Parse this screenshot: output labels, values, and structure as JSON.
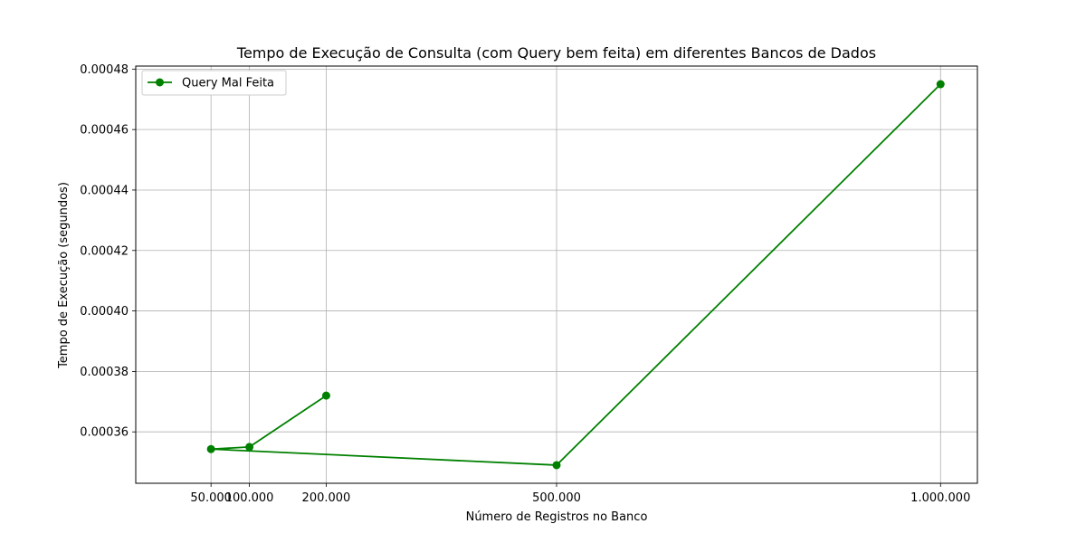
{
  "chart_data": {
    "type": "line",
    "title": "Tempo de Execução de Consulta (com Query bem feita) em diferentes Bancos de Dados",
    "xlabel": "Número de Registros no Banco",
    "ylabel": "Tempo de Execução (segundos)",
    "xlim": [
      0,
      1000000
    ],
    "ylim": [
      0.000343,
      0.000481
    ],
    "grid": true,
    "legend_position": "upper-left",
    "x_ticks": [
      {
        "value": 50000,
        "label": "50.000"
      },
      {
        "value": 100000,
        "label": "100.000"
      },
      {
        "value": 200000,
        "label": "200.000"
      },
      {
        "value": 500000,
        "label": "500.000"
      },
      {
        "value": 1000000,
        "label": "1.000.000"
      }
    ],
    "y_ticks": [
      {
        "value": 0.00036,
        "label": "0.00036"
      },
      {
        "value": 0.00038,
        "label": "0.00038"
      },
      {
        "value": 0.0004,
        "label": "0.00040"
      },
      {
        "value": 0.00042,
        "label": "0.00042"
      },
      {
        "value": 0.00044,
        "label": "0.00044"
      },
      {
        "value": 0.00046,
        "label": "0.00046"
      },
      {
        "value": 0.00048,
        "label": "0.00048"
      }
    ],
    "series": [
      {
        "name": "Query Mal Feita",
        "color": "#008000",
        "marker": "circle",
        "x": [
          200000,
          100000,
          50000,
          500000,
          1000000
        ],
        "y": [
          0.000372,
          0.000355,
          0.0003543,
          0.000349,
          0.000475
        ]
      }
    ]
  }
}
